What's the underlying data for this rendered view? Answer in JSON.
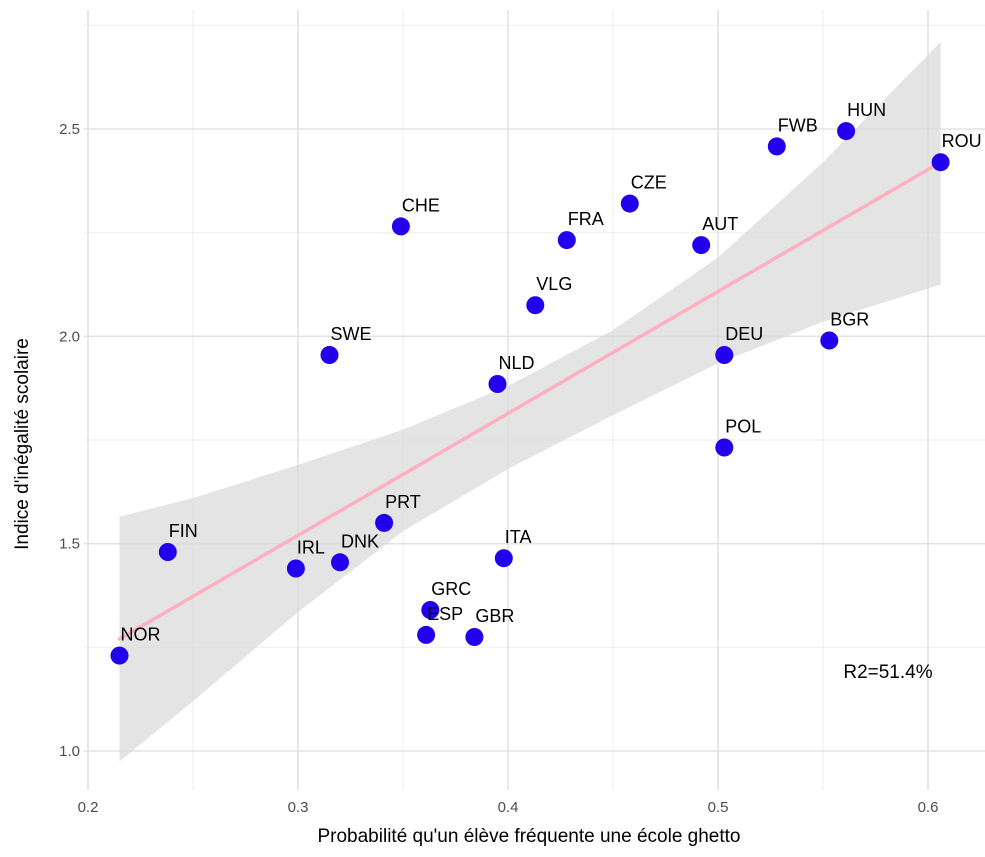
{
  "chart_data": {
    "type": "scatter",
    "title": "",
    "xlabel": "Probabilité qu'un élève fréquente une école ghetto",
    "ylabel": "Indice d'inégalité scolaire",
    "xlim": [
      0.2,
      0.6
    ],
    "ylim": [
      1.0,
      2.5
    ],
    "x_ticks": [
      {
        "value": 0.2,
        "label": "0.2"
      },
      {
        "value": 0.3,
        "label": "0.3"
      },
      {
        "value": 0.4,
        "label": "0.4"
      },
      {
        "value": 0.5,
        "label": "0.5"
      },
      {
        "value": 0.6,
        "label": "0.6"
      }
    ],
    "y_ticks": [
      {
        "value": 1.0,
        "label": "1.0"
      },
      {
        "value": 1.5,
        "label": "1.5"
      },
      {
        "value": 2.0,
        "label": "2.0"
      },
      {
        "value": 2.5,
        "label": "2.5"
      }
    ],
    "grid": true,
    "point_color": "#2200ee",
    "fit_line_color": "#ffb0c0",
    "confidence_band_color": "#d9d9d9",
    "annotation": "R2=51.4%",
    "points": [
      {
        "label": "NOR",
        "x": 0.215,
        "y": 1.23
      },
      {
        "label": "FIN",
        "x": 0.238,
        "y": 1.48
      },
      {
        "label": "IRL",
        "x": 0.299,
        "y": 1.44
      },
      {
        "label": "DNK",
        "x": 0.32,
        "y": 1.455
      },
      {
        "label": "SWE",
        "x": 0.315,
        "y": 1.955
      },
      {
        "label": "PRT",
        "x": 0.341,
        "y": 1.55
      },
      {
        "label": "CHE",
        "x": 0.349,
        "y": 2.265
      },
      {
        "label": "ESP",
        "x": 0.361,
        "y": 1.28
      },
      {
        "label": "GRC",
        "x": 0.363,
        "y": 1.34
      },
      {
        "label": "GBR",
        "x": 0.384,
        "y": 1.275
      },
      {
        "label": "NLD",
        "x": 0.395,
        "y": 1.885
      },
      {
        "label": "ITA",
        "x": 0.398,
        "y": 1.465
      },
      {
        "label": "VLG",
        "x": 0.413,
        "y": 2.075
      },
      {
        "label": "FRA",
        "x": 0.428,
        "y": 2.232
      },
      {
        "label": "CZE",
        "x": 0.458,
        "y": 2.32
      },
      {
        "label": "AUT",
        "x": 0.492,
        "y": 2.22
      },
      {
        "label": "DEU",
        "x": 0.503,
        "y": 1.955
      },
      {
        "label": "POL",
        "x": 0.503,
        "y": 1.732
      },
      {
        "label": "FWB",
        "x": 0.528,
        "y": 2.458
      },
      {
        "label": "BGR",
        "x": 0.553,
        "y": 1.99
      },
      {
        "label": "HUN",
        "x": 0.561,
        "y": 2.495
      },
      {
        "label": "ROU",
        "x": 0.606,
        "y": 2.42
      }
    ],
    "fit": {
      "x": [
        0.215,
        0.606
      ],
      "y": [
        1.27,
        2.42
      ]
    },
    "confidence_band": {
      "x": [
        0.215,
        0.25,
        0.3,
        0.35,
        0.4,
        0.45,
        0.5,
        0.55,
        0.606
      ],
      "upper": [
        1.565,
        1.61,
        1.69,
        1.775,
        1.88,
        2.015,
        2.19,
        2.42,
        2.71
      ],
      "lower": [
        0.975,
        1.12,
        1.335,
        1.53,
        1.68,
        1.81,
        1.935,
        2.035,
        2.125
      ]
    }
  }
}
